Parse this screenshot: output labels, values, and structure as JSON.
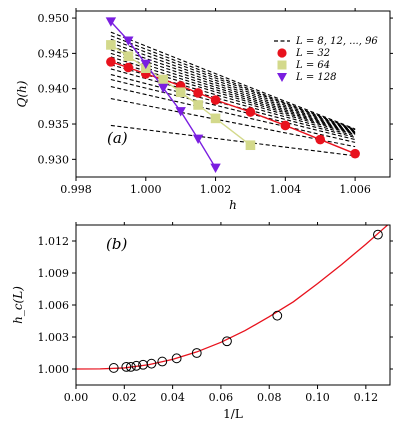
{
  "chart_data": [
    {
      "type": "line",
      "panel_label": "(a)",
      "xlabel": "h",
      "ylabel": "Q(h)",
      "xlim": [
        0.998,
        1.007
      ],
      "ylim": [
        0.9275,
        0.951
      ],
      "xticks": [
        "0.998",
        "1.000",
        "1.002",
        "1.004",
        "1.006"
      ],
      "yticks": [
        "0.930",
        "0.935",
        "0.940",
        "0.945",
        "0.950"
      ],
      "legend_position": "top-right",
      "legend": [
        "L = 8, 12, ..., 96",
        "L = 32",
        "L = 64",
        "L = 128"
      ],
      "dashed_series": [
        {
          "x": [
            0.999,
            1.006
          ],
          "y": [
            0.9348,
            0.9305
          ]
        },
        {
          "x": [
            0.999,
            1.006
          ],
          "y": [
            0.9386,
            0.9318
          ]
        },
        {
          "x": [
            0.999,
            1.006
          ],
          "y": [
            0.9403,
            0.9324
          ]
        },
        {
          "x": [
            0.999,
            1.006
          ],
          "y": [
            0.9413,
            0.9328
          ]
        },
        {
          "x": [
            0.999,
            1.006
          ],
          "y": [
            0.942,
            0.9331
          ]
        },
        {
          "x": [
            0.999,
            1.006
          ],
          "y": [
            0.9428,
            0.9333
          ]
        },
        {
          "x": [
            0.999,
            1.006
          ],
          "y": [
            0.9434,
            0.9335
          ]
        },
        {
          "x": [
            0.999,
            1.006
          ],
          "y": [
            0.944,
            0.9336
          ]
        },
        {
          "x": [
            0.999,
            1.006
          ],
          "y": [
            0.9445,
            0.9337
          ]
        },
        {
          "x": [
            0.999,
            1.006
          ],
          "y": [
            0.945,
            0.9338
          ]
        },
        {
          "x": [
            0.999,
            1.006
          ],
          "y": [
            0.9455,
            0.9339
          ]
        },
        {
          "x": [
            0.999,
            1.006
          ],
          "y": [
            0.946,
            0.934
          ]
        },
        {
          "x": [
            0.999,
            1.006
          ],
          "y": [
            0.9465,
            0.9341
          ]
        },
        {
          "x": [
            0.999,
            1.006
          ],
          "y": [
            0.947,
            0.9342
          ]
        },
        {
          "x": [
            0.999,
            1.006
          ],
          "y": [
            0.9475,
            0.9342
          ]
        },
        {
          "x": [
            0.999,
            1.006
          ],
          "y": [
            0.948,
            0.9343
          ]
        }
      ],
      "series": [
        {
          "name": "L = 32",
          "color": "#e8121d",
          "marker": "circle",
          "x": [
            0.999,
            0.9995,
            1.0,
            1.0005,
            1.001,
            1.0015,
            1.002,
            1.003,
            1.004,
            1.005,
            1.006
          ],
          "y": [
            0.9438,
            0.943,
            0.9421,
            0.9413,
            0.9404,
            0.9394,
            0.9384,
            0.9367,
            0.9348,
            0.9328,
            0.9308
          ]
        },
        {
          "name": "L = 64",
          "color": "#d3d98b",
          "marker": "square",
          "x": [
            0.999,
            0.9995,
            1.0,
            1.0005,
            1.001,
            1.0015,
            1.002,
            1.003
          ],
          "y": [
            0.9462,
            0.9446,
            0.9429,
            0.9413,
            0.9395,
            0.9377,
            0.9358,
            0.932
          ]
        },
        {
          "name": "L = 128",
          "color": "#7a1ee0",
          "marker": "triangle-down",
          "x": [
            0.999,
            0.9995,
            1.0,
            1.0005,
            1.001,
            1.0015,
            1.002
          ],
          "y": [
            0.9495,
            0.9468,
            0.9435,
            0.9401,
            0.9368,
            0.9329,
            0.9288
          ]
        }
      ]
    },
    {
      "type": "scatter",
      "panel_label": "(b)",
      "xlabel": "1/L",
      "ylabel": "h_c(L)",
      "xlim": [
        0.0,
        0.13
      ],
      "ylim": [
        0.9985,
        1.0135
      ],
      "xticks": [
        "0.00",
        "0.02",
        "0.04",
        "0.06",
        "0.08",
        "0.10",
        "0.12"
      ],
      "yticks": [
        "1.000",
        "1.003",
        "1.006",
        "1.009",
        "1.012"
      ],
      "points": {
        "x": [
          0.015625,
          0.020833,
          0.022727,
          0.025,
          0.027778,
          0.03125,
          0.035714,
          0.041667,
          0.05,
          0.0625,
          0.083333,
          0.125
        ],
        "y": [
          1.0001,
          1.0002,
          1.0002,
          1.0003,
          1.0004,
          1.0005,
          1.0007,
          1.001,
          1.0015,
          1.0026,
          1.005,
          1.0126
        ]
      },
      "fit": {
        "color": "#e8121d",
        "x": [
          0.0,
          0.01,
          0.02,
          0.03,
          0.04,
          0.05,
          0.06,
          0.07,
          0.08,
          0.09,
          0.1,
          0.11,
          0.12,
          0.13
        ],
        "y": [
          1.0,
          1.00001,
          1.0001,
          1.0004,
          1.0009,
          1.0016,
          1.0025,
          1.0036,
          1.0049,
          1.0063,
          1.008,
          1.0098,
          1.0117,
          1.0137
        ]
      }
    }
  ]
}
